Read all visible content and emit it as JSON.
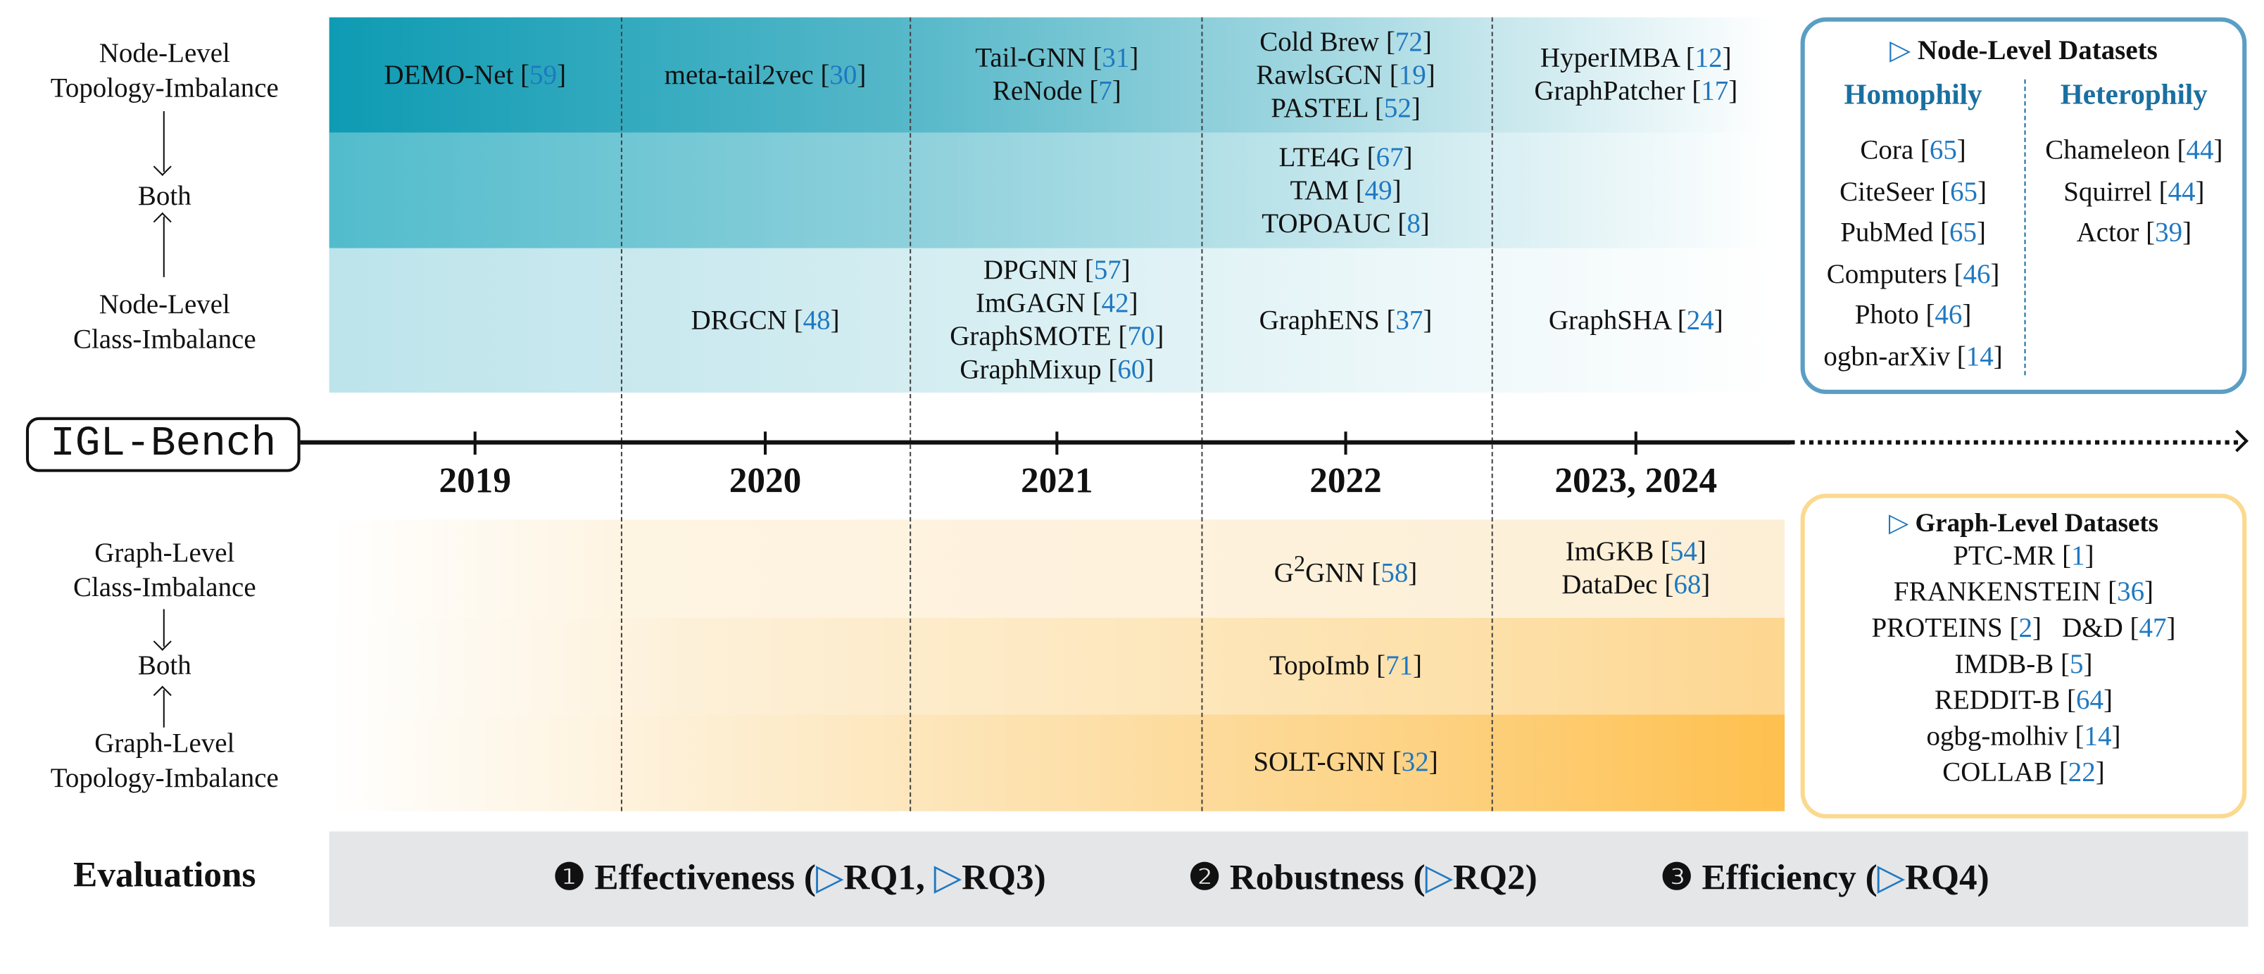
{
  "colors": {
    "citation": "#1f78c1",
    "node_box_border": "#5b9ec4",
    "graph_box_border": "#fbd98f",
    "heading_blue": "#1a6fa0",
    "eval_band": "#e5e6e8"
  },
  "node_labels": {
    "top": [
      "Node-Level",
      "Topology-Imbalance"
    ],
    "middle": "Both",
    "bottom": [
      "Node-Level",
      "Class-Imbalance"
    ]
  },
  "graph_labels": {
    "top": [
      "Graph-Level",
      "Class-Imbalance"
    ],
    "middle": "Both",
    "bottom": [
      "Graph-Level",
      "Topology-Imbalance"
    ]
  },
  "timeline": {
    "logo": "IGL-Bench",
    "years": [
      "2019",
      "2020",
      "2021",
      "2022",
      "2023, 2024"
    ]
  },
  "node_rows": [
    [
      [
        {
          "name": "DEMO-Net",
          "ref": "59"
        }
      ],
      [
        {
          "name": "meta-tail2vec",
          "ref": "30"
        }
      ],
      [
        {
          "name": "Tail-GNN",
          "ref": "31"
        },
        {
          "name": "ReNode",
          "ref": "7"
        }
      ],
      [
        {
          "name": "Cold Brew",
          "ref": "72"
        },
        {
          "name": "RawlsGCN",
          "ref": "19"
        },
        {
          "name": "PASTEL",
          "ref": "52"
        }
      ],
      [
        {
          "name": "HyperIMBA",
          "ref": "12"
        },
        {
          "name": "GraphPatcher",
          "ref": "17"
        }
      ]
    ],
    [
      [],
      [],
      [],
      [
        {
          "name": "LTE4G",
          "ref": "67"
        },
        {
          "name": "TAM",
          "ref": "49"
        },
        {
          "name": "TOPOAUC",
          "ref": "8"
        }
      ],
      []
    ],
    [
      [],
      [
        {
          "name": "DRGCN",
          "ref": "48"
        }
      ],
      [
        {
          "name": "DPGNN",
          "ref": "57"
        },
        {
          "name": "ImGAGN",
          "ref": "42"
        },
        {
          "name": "GraphSMOTE",
          "ref": "70"
        },
        {
          "name": "GraphMixup",
          "ref": "60"
        }
      ],
      [
        {
          "name": "GraphENS",
          "ref": "37"
        }
      ],
      [
        {
          "name": "GraphSHA",
          "ref": "24"
        }
      ]
    ]
  ],
  "graph_rows": [
    [
      [],
      [],
      [],
      [
        {
          "name": "G",
          "sup": "2",
          "post": "GNN",
          "ref": "58"
        }
      ],
      [
        {
          "name": "ImGKB",
          "ref": "54"
        },
        {
          "name": "DataDec",
          "ref": "68"
        }
      ]
    ],
    [
      [],
      [],
      [],
      [
        {
          "name": "TopoImb",
          "ref": "71"
        }
      ],
      []
    ],
    [
      [],
      [],
      [],
      [
        {
          "name": "SOLT-GNN",
          "ref": "32"
        }
      ],
      []
    ]
  ],
  "node_datasets": {
    "title": "Node-Level Datasets",
    "homophily_label": "Homophily",
    "heterophily_label": "Heterophily",
    "homophily": [
      {
        "name": "Cora",
        "ref": "65"
      },
      {
        "name": "CiteSeer",
        "ref": "65"
      },
      {
        "name": "PubMed",
        "ref": "65"
      },
      {
        "name": "Computers",
        "ref": "46"
      },
      {
        "name": "Photo",
        "ref": "46"
      },
      {
        "name": "ogbn-arXiv",
        "ref": "14"
      }
    ],
    "heterophily": [
      {
        "name": "Chameleon",
        "ref": "44"
      },
      {
        "name": "Squirrel",
        "ref": "44"
      },
      {
        "name": "Actor",
        "ref": "39"
      }
    ]
  },
  "graph_datasets": {
    "title": "Graph-Level Datasets",
    "lines": [
      [
        {
          "name": "PTC-MR",
          "ref": "1"
        }
      ],
      [
        {
          "name": "FRANKENSTEIN",
          "ref": "36"
        }
      ],
      [
        {
          "name": "PROTEINS",
          "ref": "2"
        },
        {
          "name": "D&D",
          "ref": "47"
        }
      ],
      [
        {
          "name": "IMDB-B",
          "ref": "5"
        }
      ],
      [
        {
          "name": "REDDIT-B",
          "ref": "64"
        }
      ],
      [
        {
          "name": "ogbg-molhiv",
          "ref": "14"
        }
      ],
      [
        {
          "name": "COLLAB",
          "ref": "22"
        }
      ]
    ]
  },
  "evaluations": {
    "label": "Evaluations",
    "items": [
      {
        "num": "❶",
        "name": "Effectiveness",
        "rqs": [
          "RQ1",
          "RQ3"
        ]
      },
      {
        "num": "❷",
        "name": "Robustness",
        "rqs": [
          "RQ2"
        ]
      },
      {
        "num": "❸",
        "name": "Efficiency",
        "rqs": [
          "RQ4"
        ]
      }
    ]
  }
}
